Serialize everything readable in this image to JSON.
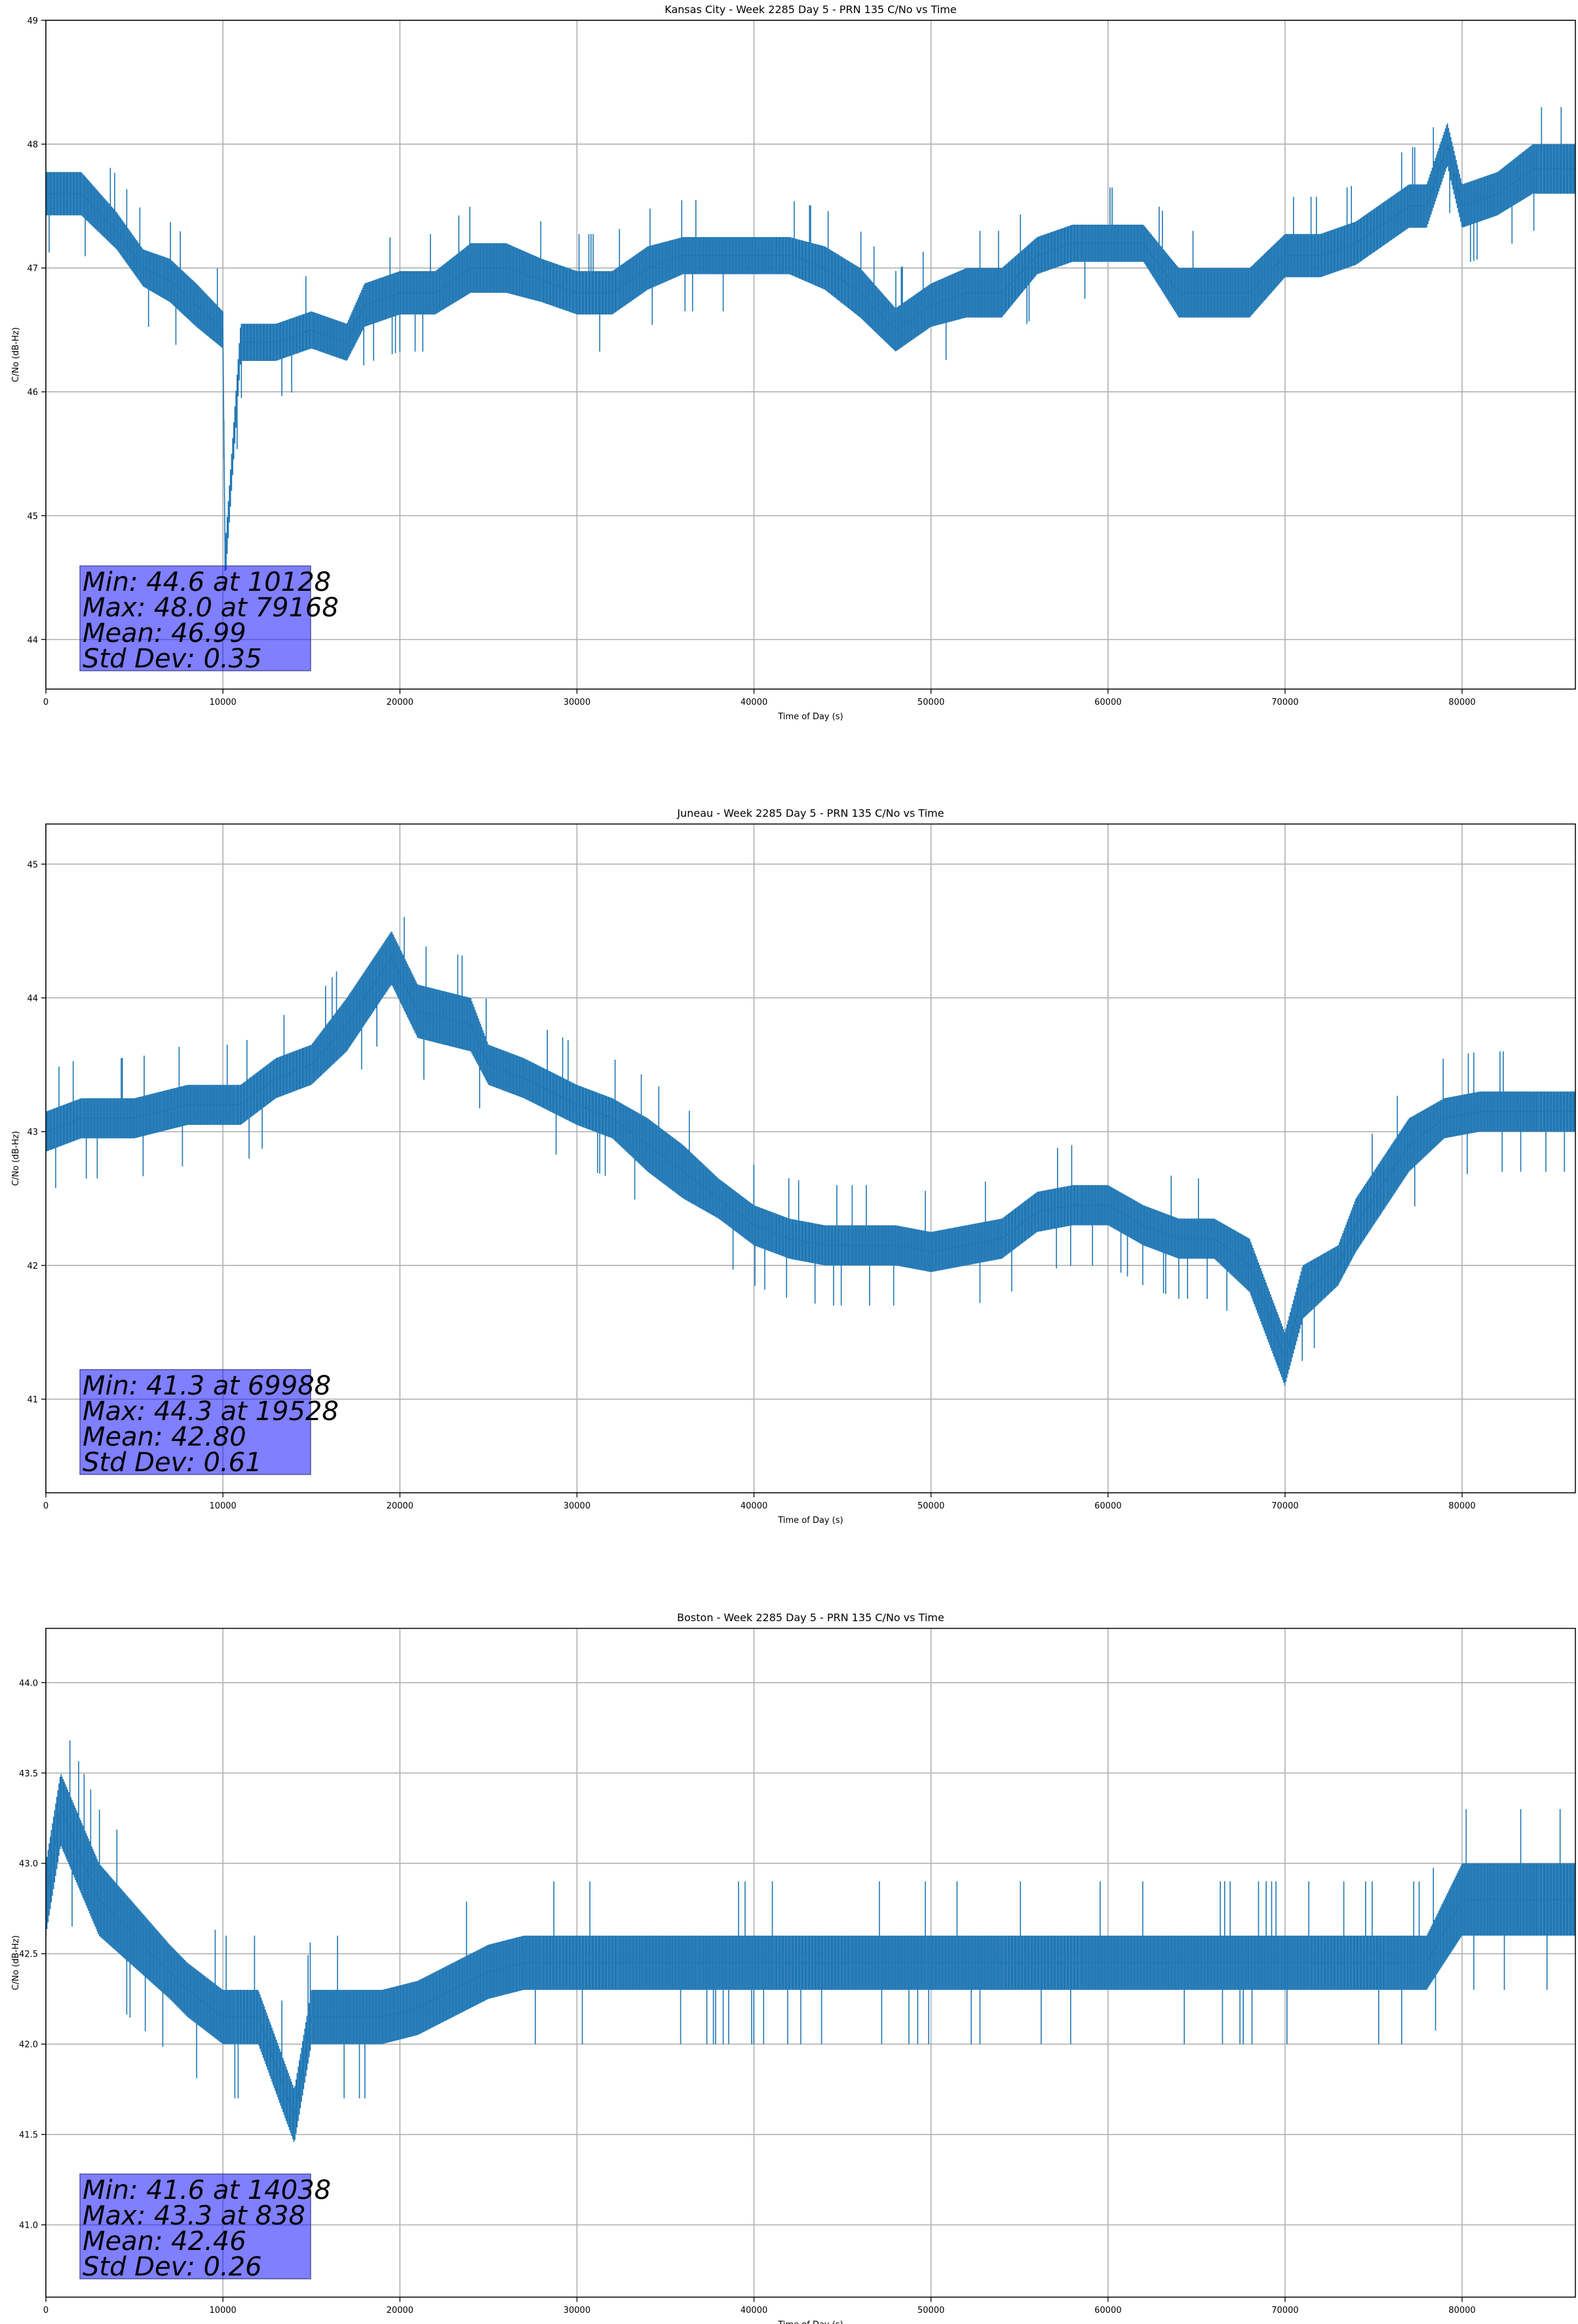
{
  "chart_data": [
    {
      "type": "line",
      "title": "Kansas City - Week 2285 Day 5 - PRN 135 C/No vs Time",
      "xlabel": "Time of Day (s)",
      "ylabel": "C/No (dB-Hz)",
      "xlim": [
        0,
        86400
      ],
      "ylim": [
        43.6,
        49
      ],
      "xticks": [
        0,
        10000,
        20000,
        30000,
        40000,
        50000,
        60000,
        70000,
        80000
      ],
      "yticks": [
        "44",
        "45",
        "46",
        "47",
        "48",
        "49"
      ],
      "grid": true,
      "color": "#1f77b4",
      "series": [
        {
          "x": [
            0,
            2000,
            4000,
            5500,
            7000,
            8500,
            10000,
            10128,
            11000,
            13000,
            15000,
            17000,
            18000,
            20000,
            22000,
            24000,
            26000,
            28000,
            30000,
            32000,
            34000,
            36000,
            38000,
            40000,
            42000,
            44000,
            46000,
            48000,
            50000,
            52000,
            54000,
            56000,
            58000,
            60000,
            62000,
            64000,
            66000,
            68000,
            70000,
            72000,
            74000,
            76000,
            77000,
            78000,
            79168,
            80000,
            82000,
            84000,
            86400
          ],
          "y": [
            47.6,
            47.6,
            47.3,
            47.0,
            46.9,
            46.7,
            46.5,
            44.6,
            46.4,
            46.4,
            46.5,
            46.4,
            46.7,
            46.8,
            46.8,
            47.0,
            47.0,
            46.9,
            46.8,
            46.8,
            47.0,
            47.1,
            47.1,
            47.1,
            47.1,
            47.0,
            46.8,
            46.5,
            46.7,
            46.8,
            46.8,
            47.1,
            47.2,
            47.2,
            47.2,
            46.8,
            46.8,
            46.8,
            47.1,
            47.1,
            47.2,
            47.4,
            47.5,
            47.5,
            48.0,
            47.5,
            47.6,
            47.8,
            47.8
          ],
          "band": [
            0.35,
            0.35,
            0.3,
            0.3,
            0.35,
            0.35,
            0.3,
            0.3,
            0.3,
            0.3,
            0.3,
            0.3,
            0.35,
            0.35,
            0.35,
            0.4,
            0.4,
            0.35,
            0.35,
            0.35,
            0.35,
            0.3,
            0.3,
            0.3,
            0.3,
            0.35,
            0.4,
            0.35,
            0.35,
            0.4,
            0.4,
            0.3,
            0.3,
            0.3,
            0.3,
            0.4,
            0.4,
            0.4,
            0.35,
            0.35,
            0.35,
            0.35,
            0.35,
            0.35,
            0.35,
            0.35,
            0.35,
            0.4,
            0.4
          ]
        }
      ],
      "stats": [
        "Min: 44.6 at 10128",
        "Max: 48.0 at 79168",
        "Mean: 46.99",
        "Std Dev: 0.35"
      ]
    },
    {
      "type": "line",
      "title": "Juneau - Week 2285 Day 5 - PRN 135 C/No vs Time",
      "xlabel": "Time of Day (s)",
      "ylabel": "C/No (dB-Hz)",
      "xlim": [
        0,
        86400
      ],
      "ylim": [
        40.3,
        45.3
      ],
      "xticks": [
        0,
        10000,
        20000,
        30000,
        40000,
        50000,
        60000,
        70000,
        80000
      ],
      "yticks": [
        "41",
        "42",
        "43",
        "44",
        "45"
      ],
      "grid": true,
      "color": "#1f77b4",
      "series": [
        {
          "x": [
            0,
            2000,
            5000,
            8000,
            11000,
            13000,
            15000,
            17000,
            19528,
            21000,
            24000,
            25000,
            27000,
            30000,
            32000,
            34000,
            36000,
            38000,
            40000,
            42000,
            44000,
            46000,
            48000,
            50000,
            52000,
            54000,
            56000,
            58000,
            60000,
            62000,
            64000,
            66000,
            68000,
            69988,
            71000,
            73000,
            74000,
            75000,
            76000,
            77000,
            79000,
            81000,
            83000,
            86400
          ],
          "y": [
            43.0,
            43.1,
            43.1,
            43.2,
            43.2,
            43.4,
            43.5,
            43.8,
            44.3,
            43.9,
            43.8,
            43.5,
            43.4,
            43.2,
            43.1,
            42.9,
            42.7,
            42.5,
            42.3,
            42.2,
            42.15,
            42.15,
            42.15,
            42.1,
            42.15,
            42.2,
            42.4,
            42.45,
            42.45,
            42.3,
            42.2,
            42.2,
            42.0,
            41.3,
            41.8,
            42.0,
            42.3,
            42.5,
            42.7,
            42.9,
            43.1,
            43.15,
            43.15,
            43.15
          ],
          "band": [
            0.3,
            0.3,
            0.3,
            0.3,
            0.3,
            0.3,
            0.3,
            0.4,
            0.4,
            0.4,
            0.4,
            0.3,
            0.3,
            0.3,
            0.3,
            0.4,
            0.4,
            0.3,
            0.3,
            0.3,
            0.3,
            0.3,
            0.3,
            0.3,
            0.3,
            0.3,
            0.3,
            0.3,
            0.3,
            0.3,
            0.3,
            0.3,
            0.4,
            0.4,
            0.4,
            0.3,
            0.4,
            0.4,
            0.4,
            0.4,
            0.3,
            0.3,
            0.3,
            0.3
          ]
        }
      ],
      "stats": [
        "Min: 41.3 at 69988",
        "Max: 44.3 at 19528",
        "Mean: 42.80",
        "Std Dev: 0.61"
      ]
    },
    {
      "type": "line",
      "title": "Boston - Week 2285 Day 5 - PRN 135 C/No vs Time",
      "xlabel": "Time of Day (s)",
      "ylabel": "C/No (dB-Hz)",
      "xlim": [
        0,
        86400
      ],
      "ylim": [
        40.6,
        44.3
      ],
      "xticks": [
        0,
        10000,
        20000,
        30000,
        40000,
        50000,
        60000,
        70000,
        80000
      ],
      "yticks": [
        "41.0",
        "41.5",
        "42.0",
        "42.5",
        "43.0",
        "43.5",
        "44.0"
      ],
      "grid": true,
      "color": "#1f77b4",
      "series": [
        {
          "x": [
            0,
            838,
            3000,
            5000,
            7000,
            8000,
            10000,
            12000,
            14038,
            15000,
            17000,
            19000,
            21000,
            23000,
            25000,
            27000,
            30000,
            33000,
            36000,
            39000,
            42000,
            45000,
            48000,
            51000,
            54000,
            57000,
            60000,
            63000,
            66000,
            69000,
            72000,
            75000,
            78000,
            80000,
            82000,
            84000,
            86400
          ],
          "y": [
            42.8,
            43.3,
            42.8,
            42.6,
            42.4,
            42.3,
            42.15,
            42.15,
            41.6,
            42.15,
            42.15,
            42.15,
            42.2,
            42.3,
            42.4,
            42.45,
            42.45,
            42.45,
            42.45,
            42.45,
            42.45,
            42.45,
            42.45,
            42.45,
            42.45,
            42.45,
            42.45,
            42.45,
            42.45,
            42.45,
            42.45,
            42.45,
            42.45,
            42.8,
            42.8,
            42.8,
            42.8
          ],
          "band": [
            0.4,
            0.4,
            0.4,
            0.35,
            0.3,
            0.3,
            0.3,
            0.3,
            0.3,
            0.3,
            0.3,
            0.3,
            0.3,
            0.3,
            0.3,
            0.3,
            0.3,
            0.3,
            0.3,
            0.3,
            0.3,
            0.3,
            0.3,
            0.3,
            0.3,
            0.3,
            0.3,
            0.3,
            0.3,
            0.3,
            0.3,
            0.3,
            0.3,
            0.4,
            0.4,
            0.4,
            0.4
          ]
        }
      ],
      "stats": [
        "Min: 41.6 at 14038",
        "Max: 43.3 at 838",
        "Mean: 42.46",
        "Std Dev: 0.26"
      ]
    }
  ]
}
